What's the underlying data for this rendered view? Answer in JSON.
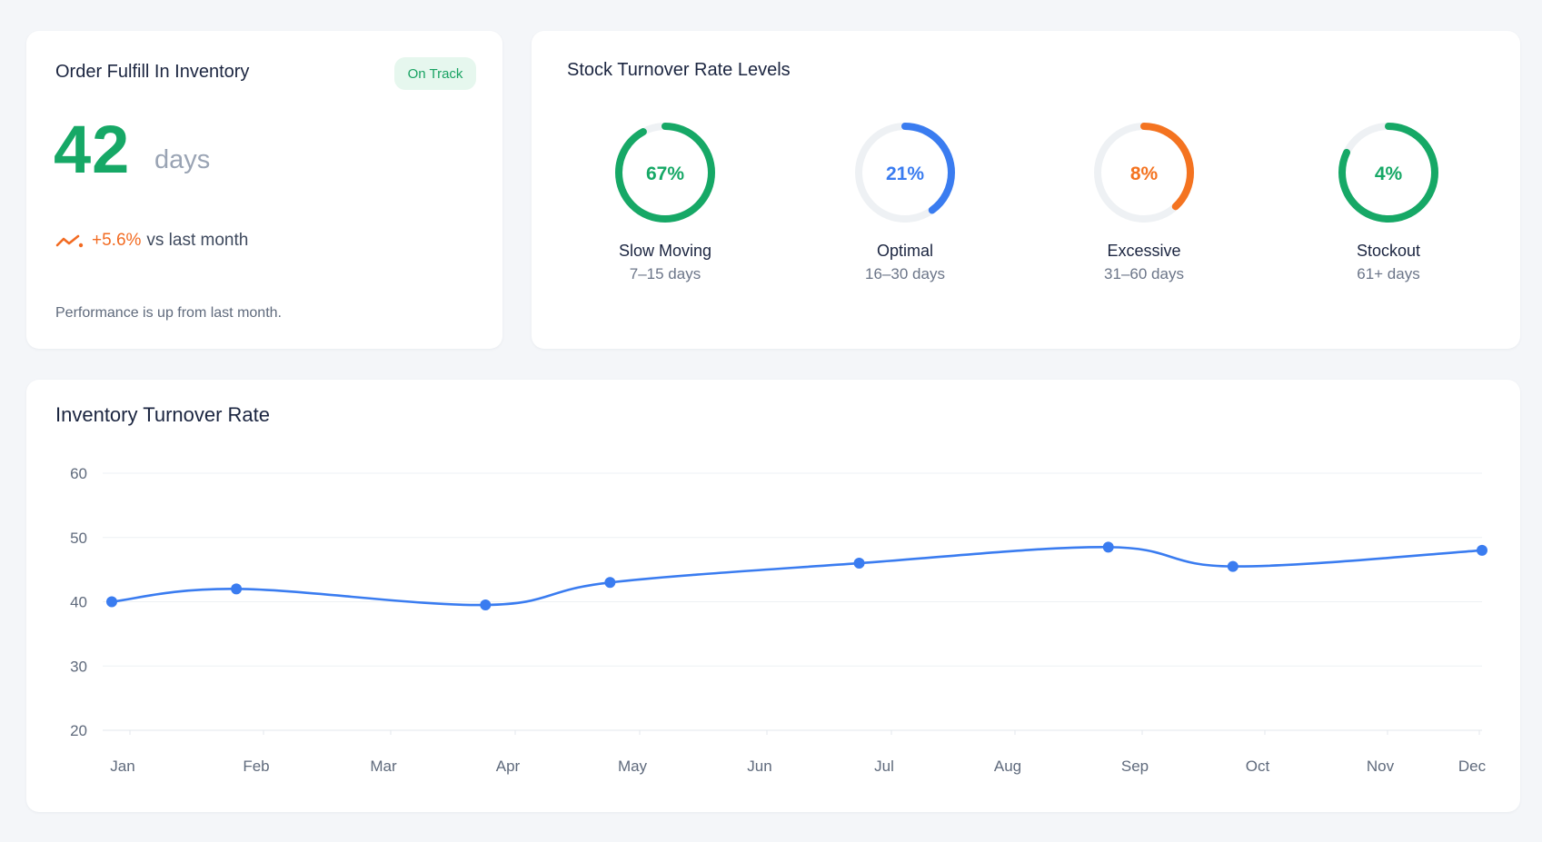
{
  "fulfill": {
    "title": "Order Fulfill In Inventory",
    "badge": "On Track",
    "value": "42",
    "unit": "days",
    "trend_value": "+5.6%",
    "trend_text": "vs last month",
    "note": "Performance is up from last month."
  },
  "levels": {
    "title": "Stock Turnover Rate Levels",
    "items": [
      {
        "pct_label": "67%",
        "pct": 67,
        "label": "Slow Moving",
        "range": "7–15 days",
        "color": "#16a866",
        "track": "#eef1f4"
      },
      {
        "pct_label": "21%",
        "pct": 21,
        "label": "Optimal",
        "range": "16–30 days",
        "color": "#3a7cf0",
        "track": "#eef1f4"
      },
      {
        "pct_label": "8%",
        "pct": 8,
        "label": "Excessive",
        "range": "31–60 days",
        "color": "#f47320",
        "track": "#eef1f4"
      },
      {
        "pct_label": "4%",
        "pct": 4,
        "label": "Stockout",
        "range": "61+ days",
        "color": "#16a866",
        "track": "#eef1f4"
      }
    ]
  },
  "chart": {
    "title": "Inventory Turnover Rate"
  },
  "chart_data": {
    "type": "line",
    "title": "Inventory Turnover Rate",
    "categories": [
      "Jan",
      "Feb",
      "Mar",
      "Apr",
      "May",
      "Jun",
      "Jul",
      "Aug",
      "Sep",
      "Oct",
      "Nov",
      "Dec"
    ],
    "y_ticks": [
      60,
      50,
      40,
      30,
      20
    ],
    "ylim": [
      20,
      60
    ],
    "series": [
      {
        "color": "#3a7cf0",
        "points": [
          {
            "x": "Jan",
            "y": 40
          },
          {
            "x": "Feb",
            "y": 42
          },
          {
            "x": "Apr",
            "y": 39.5
          },
          {
            "x": "May",
            "y": 43
          },
          {
            "x": "Jul",
            "y": 46
          },
          {
            "x": "Sep",
            "y": 48.5
          },
          {
            "x": "Oct",
            "y": 45.5
          },
          {
            "x": "Dec",
            "y": 48
          }
        ]
      }
    ],
    "grid": true
  }
}
